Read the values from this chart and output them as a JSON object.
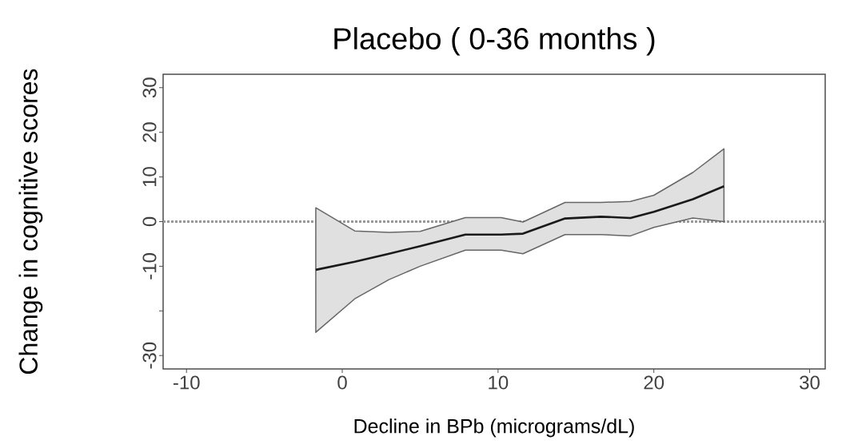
{
  "chart_data": {
    "type": "line",
    "title": "Placebo ( 0-36 months )",
    "xlabel": "Decline in BPb (micrograms/dL)",
    "ylabel": "Change in cognitive scores",
    "xlim": [
      -11.5,
      31
    ],
    "ylim": [
      -33,
      33
    ],
    "xticks": [
      -10,
      0,
      10,
      20,
      30
    ],
    "yticks": [
      -30,
      {
        "value": -20,
        "label": null
      },
      -10,
      0,
      10,
      20,
      30
    ],
    "grid": false,
    "marker": "none",
    "line_style": "solid",
    "ref_lines": [
      {
        "axis": "y",
        "value": 0,
        "color": "#999999",
        "line_style": "dotted"
      }
    ],
    "series": [
      {
        "color": "#1a1a1a",
        "x": [
          -1.7,
          0.8,
          3.0,
          5.0,
          7.9,
          10.2,
          11.6,
          14.3,
          16.6,
          18.5,
          20.0,
          22.5,
          24.5
        ],
        "values": [
          -10.8,
          -9,
          -7.2,
          -5.5,
          -2.9,
          -2.9,
          -2.7,
          0.7,
          1.1,
          0.8,
          2.2,
          5.0,
          7.9
        ],
        "upper": [
          3.1,
          -2.1,
          -2.4,
          -2.2,
          0.9,
          0.9,
          -0.1,
          4.3,
          4.3,
          4.5,
          5.9,
          11.0,
          16.3
        ],
        "lower": [
          -24.8,
          -17.3,
          -13.0,
          -10.0,
          -6.4,
          -6.4,
          -7.2,
          -2.9,
          -2.9,
          -3.2,
          -1.3,
          0.8,
          0
        ]
      }
    ]
  }
}
